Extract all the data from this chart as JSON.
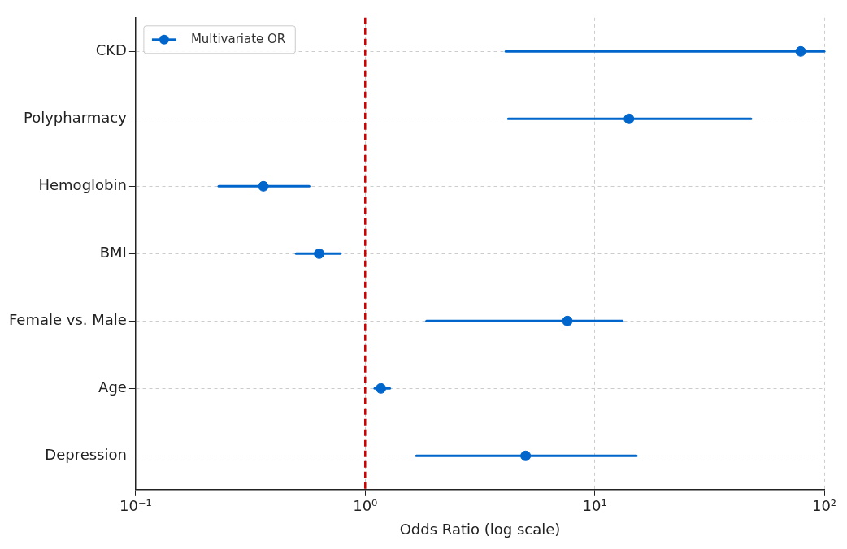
{
  "chart_data": {
    "type": "scatter",
    "orientation": "horizontal",
    "xlabel": "Odds Ratio (log scale)",
    "log": "x",
    "categories": [
      "CKD",
      "Polypharmacy",
      "Hemoglobin",
      "BMI",
      "Female vs. Male",
      "Age",
      "Depression"
    ],
    "series": [
      {
        "name": "Multivariate OR",
        "color": "#0066cc",
        "values": [
          79,
          14.1,
          0.36,
          0.63,
          7.6,
          1.17,
          5.0
        ],
        "errors": [
          [
            4.1,
            100
          ],
          [
            4.2,
            48
          ],
          [
            0.23,
            0.57
          ],
          [
            0.5,
            0.78
          ],
          [
            1.85,
            13.2
          ],
          [
            1.1,
            1.28
          ],
          [
            1.67,
            15.2
          ]
        ]
      }
    ],
    "xlim": [
      0.1,
      100
    ],
    "xticks": [
      {
        "value": 0.1,
        "label": "10⁻¹"
      },
      {
        "value": 1,
        "label": "10⁰"
      },
      {
        "value": 10,
        "label": "10¹"
      },
      {
        "value": 100,
        "label": "10²"
      }
    ],
    "ref_lines": [
      {
        "axis": "x",
        "value": 1,
        "color": "#cc0000",
        "line_style": "dashed"
      }
    ],
    "grid": true,
    "legend": "top left",
    "marker": "circle"
  }
}
